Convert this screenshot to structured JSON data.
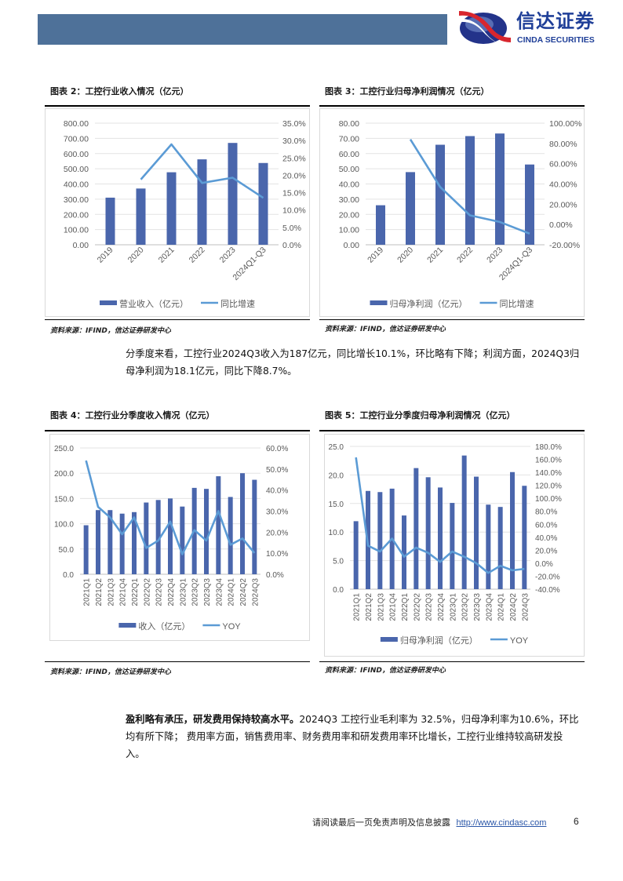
{
  "header": {
    "brand_color": "#4e7199",
    "logo_cn": "信达证券",
    "logo_en": "CINDA SECURITIES"
  },
  "figures": [
    {
      "title": "图表 2：工控行业收入情况（亿元）",
      "source": "资料来源：IFIND，信达证券研发中心"
    },
    {
      "title": "图表 3：工控行业归母净利润情况（亿元）",
      "source": "资料来源：IFIND，信达证券研发中心"
    },
    {
      "title": "图表 4：工控行业分季度收入情况（亿元）",
      "source": "资料来源：IFIND，信达证券研发中心"
    },
    {
      "title": "图表 5：工控行业分季度归母净利润情况（亿元）",
      "source": "资料来源：IFIND，信达证券研发中心"
    }
  ],
  "paragraphs": {
    "p1": "分季度来看，工控行业2024Q3收入为187亿元，同比增长10.1%，环比略有下降；利润方面，2024Q3归母净利润为18.1亿元，同比下降8.7%。",
    "p2_bold": "盈利略有承压，研发费用保持较高水平。",
    "p2": "2024Q3 工控行业毛利率为 32.5%，归母净利率为10.6%，环比均有所下降； 费用率方面，销售费用率、财务费用率和研发费用率环比增长，工控行业维持较高研发投入。"
  },
  "footer": {
    "disclaimer": "请阅读最后一页免责声明及信息披露",
    "url": "http://www.cindasc.com",
    "page": "6"
  },
  "chart_data": [
    {
      "type": "bar+line",
      "categories": [
        "2019",
        "2020",
        "2021",
        "2022",
        "2023",
        "2024Q1-Q3"
      ],
      "series": [
        {
          "name": "营业收入（亿元）",
          "axis": "left",
          "type": "bar",
          "color": "#4a66ac",
          "values": [
            310,
            370,
            477,
            562,
            670,
            538
          ]
        },
        {
          "name": "同比增速",
          "axis": "right",
          "type": "line",
          "color": "#5b9bd5",
          "values": [
            null,
            18.8,
            28.9,
            17.8,
            19.3,
            13.5
          ]
        }
      ],
      "ylim": [
        0,
        800
      ],
      "y_ticks": [
        "0.00",
        "100.00",
        "200.00",
        "300.00",
        "400.00",
        "500.00",
        "600.00",
        "700.00",
        "800.00"
      ],
      "y2lim": [
        0,
        35
      ],
      "y2_ticks": [
        "0.0%",
        "5.0%",
        "10.0%",
        "15.0%",
        "20.0%",
        "25.0%",
        "30.0%",
        "35.0%"
      ],
      "grid": true,
      "legend": "bottom"
    },
    {
      "type": "bar+line",
      "categories": [
        "2019",
        "2020",
        "2021",
        "2022",
        "2023",
        "2024Q1-Q3"
      ],
      "series": [
        {
          "name": "归母净利润（亿元）",
          "axis": "left",
          "type": "bar",
          "color": "#4a66ac",
          "values": [
            26.0,
            47.8,
            65.8,
            71.5,
            73.2,
            52.8
          ]
        },
        {
          "name": "同比增速",
          "axis": "right",
          "type": "line",
          "color": "#5b9bd5",
          "values": [
            null,
            84,
            37,
            9,
            2.5,
            -9
          ]
        }
      ],
      "ylim": [
        0,
        80
      ],
      "y_ticks": [
        "0.00",
        "10.00",
        "20.00",
        "30.00",
        "40.00",
        "50.00",
        "60.00",
        "70.00",
        "80.00"
      ],
      "y2lim": [
        -20,
        100
      ],
      "y2_ticks": [
        "-20.00%",
        "0.00%",
        "20.00%",
        "40.00%",
        "60.00%",
        "80.00%",
        "100.00%"
      ],
      "grid": true,
      "legend": "bottom"
    },
    {
      "type": "bar+line",
      "categories": [
        "2021Q1",
        "2021Q2",
        "2021Q3",
        "2021Q4",
        "2022Q1",
        "2022Q2",
        "2022Q3",
        "2022Q4",
        "2023Q1",
        "2023Q2",
        "2023Q3",
        "2023Q4",
        "2024Q1",
        "2024Q2",
        "2024Q3"
      ],
      "series": [
        {
          "name": "收入（亿元）",
          "axis": "left",
          "type": "bar",
          "color": "#4a66ac",
          "values": [
            97,
            127,
            127,
            120,
            123,
            142,
            147,
            150,
            134,
            171,
            169,
            194,
            153,
            200,
            187
          ]
        },
        {
          "name": "YOY",
          "axis": "right",
          "type": "line",
          "color": "#5b9bd5",
          "values": [
            54,
            32,
            27,
            19,
            27,
            12.5,
            16,
            25,
            9.5,
            21,
            16,
            30,
            14,
            17,
            10.1
          ]
        }
      ],
      "ylim": [
        0,
        250
      ],
      "y_ticks": [
        "0.0",
        "50.0",
        "100.0",
        "150.0",
        "200.0",
        "250.0"
      ],
      "y2lim": [
        0,
        60
      ],
      "y2_ticks": [
        "0.0%",
        "10.0%",
        "20.0%",
        "30.0%",
        "40.0%",
        "50.0%",
        "60.0%"
      ],
      "grid": true,
      "legend": "bottom"
    },
    {
      "type": "bar+line",
      "categories": [
        "2021Q1",
        "2021Q2",
        "2021Q3",
        "2021Q4",
        "2022Q1",
        "2022Q2",
        "2022Q3",
        "2022Q4",
        "2023Q1",
        "2023Q2",
        "2023Q3",
        "2023Q4",
        "2024Q1",
        "2024Q2",
        "2024Q3"
      ],
      "series": [
        {
          "name": "归母净利润（亿元）",
          "axis": "left",
          "type": "bar",
          "color": "#4a66ac",
          "values": [
            11.9,
            17.2,
            17.0,
            17.6,
            12.9,
            21.2,
            19.6,
            17.8,
            15.1,
            23.4,
            19.7,
            14.8,
            14.4,
            20.5,
            18.1
          ]
        },
        {
          "name": "YOY",
          "axis": "right",
          "type": "line",
          "color": "#5b9bd5",
          "values": [
            163,
            27,
            18,
            38,
            10,
            24,
            16,
            2,
            18,
            10,
            0,
            -15,
            -4,
            -11,
            -8.7
          ]
        }
      ],
      "ylim": [
        0,
        25
      ],
      "y_ticks": [
        "0.0",
        "5.0",
        "10.0",
        "15.0",
        "20.0",
        "25.0"
      ],
      "y2lim": [
        -40,
        180
      ],
      "y2_ticks": [
        "-40.0%",
        "-20.0%",
        "0.0%",
        "20.0%",
        "40.0%",
        "60.0%",
        "80.0%",
        "100.0%",
        "120.0%",
        "140.0%",
        "160.0%",
        "180.0%"
      ],
      "grid": true,
      "legend": "bottom"
    }
  ]
}
